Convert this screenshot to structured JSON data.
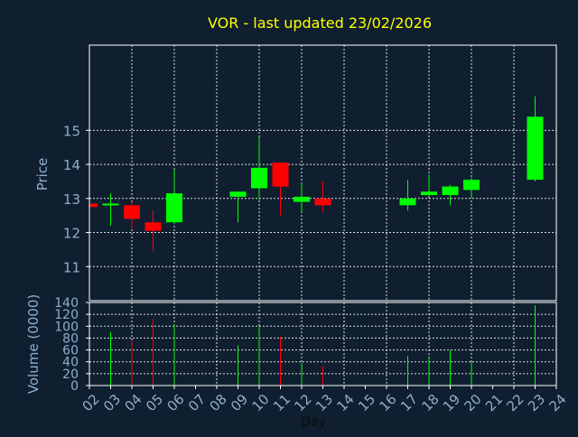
{
  "chart_data": [
    {
      "type": "candlestick",
      "title": "VOR - last updated 23/02/2026",
      "ylabel": "Price",
      "ylim": [
        10.0,
        17.5
      ],
      "yticks": [
        "11",
        "12",
        "13",
        "14",
        "15"
      ],
      "yticks_values": [
        11,
        12,
        13,
        14,
        15
      ],
      "grid": true,
      "up_color": "#00ff00",
      "down_color": "#ff0000",
      "grid_color": "#ffffff",
      "candles": [
        {
          "day": "02",
          "open": 12.85,
          "high": 12.85,
          "low": 12.75,
          "close": 12.75
        },
        {
          "day": "03",
          "open": 12.8,
          "high": 13.15,
          "low": 12.2,
          "close": 12.85
        },
        {
          "day": "04",
          "open": 12.8,
          "high": 12.9,
          "low": 12.1,
          "close": 12.4
        },
        {
          "day": "05",
          "open": 12.3,
          "high": 12.65,
          "low": 11.45,
          "close": 12.05
        },
        {
          "day": "06",
          "open": 12.3,
          "high": 13.85,
          "low": 12.25,
          "close": 13.15
        },
        {
          "day": "09",
          "open": 13.05,
          "high": 13.2,
          "low": 12.3,
          "close": 13.2
        },
        {
          "day": "10",
          "open": 13.3,
          "high": 14.8,
          "low": 12.95,
          "close": 13.9
        },
        {
          "day": "11",
          "open": 14.05,
          "high": 14.05,
          "low": 12.5,
          "close": 13.35
        },
        {
          "day": "12",
          "open": 12.9,
          "high": 13.45,
          "low": 12.6,
          "close": 13.05
        },
        {
          "day": "13",
          "open": 13.0,
          "high": 13.5,
          "low": 12.6,
          "close": 12.8
        },
        {
          "day": "17",
          "open": 12.8,
          "high": 13.55,
          "low": 12.65,
          "close": 13.0
        },
        {
          "day": "18",
          "open": 13.1,
          "high": 13.7,
          "low": 13.05,
          "close": 13.2
        },
        {
          "day": "19",
          "open": 13.1,
          "high": 13.4,
          "low": 12.8,
          "close": 13.35
        },
        {
          "day": "20",
          "open": 13.25,
          "high": 13.6,
          "low": 13.0,
          "close": 13.55
        },
        {
          "day": "23",
          "open": 13.55,
          "high": 16.0,
          "low": 13.5,
          "close": 15.4
        }
      ]
    },
    {
      "type": "bar",
      "ylabel": "Volume (0000)",
      "xlabel": "Day",
      "ylim": [
        0,
        140
      ],
      "yticks": [
        "0",
        "20",
        "40",
        "60",
        "80",
        "100",
        "120",
        "140"
      ],
      "yticks_values": [
        0,
        20,
        40,
        60,
        80,
        100,
        120,
        140
      ],
      "categories": [
        "02",
        "03",
        "04",
        "05",
        "06",
        "07",
        "08",
        "09",
        "10",
        "11",
        "12",
        "13",
        "14",
        "15",
        "16",
        "17",
        "18",
        "19",
        "20",
        "21",
        "22",
        "23",
        "24"
      ],
      "bars": [
        {
          "day": "03",
          "value": 90,
          "color": "#00ff00"
        },
        {
          "day": "04",
          "value": 75,
          "color": "#ff0000"
        },
        {
          "day": "05",
          "value": 113,
          "color": "#ff0000"
        },
        {
          "day": "06",
          "value": 103,
          "color": "#00ff00"
        },
        {
          "day": "09",
          "value": 68,
          "color": "#00ff00"
        },
        {
          "day": "10",
          "value": 100,
          "color": "#00ff00"
        },
        {
          "day": "11",
          "value": 82,
          "color": "#ff0000"
        },
        {
          "day": "12",
          "value": 38,
          "color": "#00ff00"
        },
        {
          "day": "13",
          "value": 33,
          "color": "#ff0000"
        },
        {
          "day": "17",
          "value": 50,
          "color": "#00ff00"
        },
        {
          "day": "18",
          "value": 47,
          "color": "#00ff00"
        },
        {
          "day": "19",
          "value": 60,
          "color": "#00ff00"
        },
        {
          "day": "20",
          "value": 40,
          "color": "#00ff00"
        },
        {
          "day": "23",
          "value": 135,
          "color": "#00ff00"
        }
      ]
    }
  ],
  "colors": {
    "background": "#0f1f30",
    "title": "#ffff00",
    "axis_text": "#8faecb",
    "axis_line": "#ffffff"
  }
}
